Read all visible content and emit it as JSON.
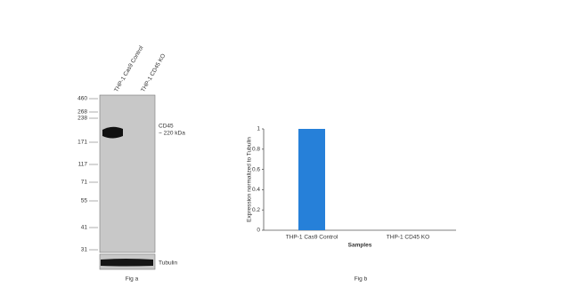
{
  "blot": {
    "lanes": [
      "THP-1 Cas9 Control",
      "THP-1 CD45 KO"
    ],
    "markers": [
      "460",
      "268",
      "238",
      "171",
      "117",
      "71",
      "55",
      "41",
      "31"
    ],
    "band_label": [
      "CD45",
      "~ 220 kDa"
    ],
    "loading_label": "Tubulin",
    "caption": "Fig a"
  },
  "chart_data": {
    "type": "bar",
    "ylabel": "Expression normalized to Tubulin",
    "xlabel": "Samples",
    "categories": [
      "THP-1 Cas9 Control",
      "THP-1 CD45 KO"
    ],
    "values": [
      1,
      0
    ],
    "color": "#2680d9",
    "ylim": [
      0,
      1
    ],
    "yticks": [
      0,
      0.2,
      0.4,
      0.6,
      0.8,
      1
    ],
    "caption": "Fig b"
  }
}
